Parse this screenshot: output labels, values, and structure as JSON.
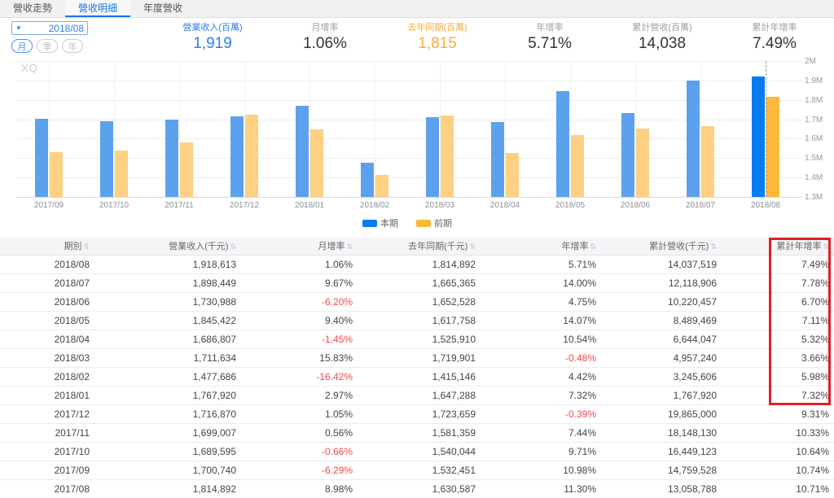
{
  "tabs": [
    {
      "label": "營收走勢",
      "active": false
    },
    {
      "label": "營收明細",
      "active": true
    },
    {
      "label": "年度營收",
      "active": false
    }
  ],
  "controls": {
    "period_dropdown": "2018/08",
    "granularity": [
      {
        "label": "月",
        "active": true
      },
      {
        "label": "季",
        "active": false
      },
      {
        "label": "年",
        "active": false
      }
    ]
  },
  "icons": {
    "dropdown_caret": "▼",
    "sort": "⇅"
  },
  "metrics": [
    {
      "label": "營業收入(百萬)",
      "value": "1,919",
      "color": "#2d7df5"
    },
    {
      "label": "月增率",
      "value": "1.06%",
      "color": "#333333"
    },
    {
      "label": "去年同期(百萬)",
      "value": "1,815",
      "color": "#fbad3c"
    },
    {
      "label": "年增率",
      "value": "5.71%",
      "color": "#333333"
    },
    {
      "label": "累計營收(百萬)",
      "value": "14,038",
      "color": "#333333"
    },
    {
      "label": "累計年增率",
      "value": "7.49%",
      "color": "#333333"
    }
  ],
  "chart_data": {
    "type": "bar",
    "watermark": "XQ",
    "categories": [
      "2017/09",
      "2017/10",
      "2017/11",
      "2017/12",
      "2018/01",
      "2018/02",
      "2018/03",
      "2018/04",
      "2018/05",
      "2018/06",
      "2018/07",
      "2018/08"
    ],
    "series": [
      {
        "name": "本期",
        "color": "#5ca1ee",
        "highlight_color": "#077cf2",
        "values": [
          1700740,
          1689595,
          1699007,
          1716870,
          1767920,
          1477686,
          1711634,
          1686807,
          1845422,
          1730988,
          1898449,
          1918613
        ]
      },
      {
        "name": "前期",
        "color": "#fdd084",
        "highlight_color": "#fcb838",
        "values": [
          1532451,
          1540044,
          1581359,
          1723659,
          1647288,
          1415146,
          1719901,
          1525910,
          1617758,
          1652528,
          1665365,
          1814892
        ]
      }
    ],
    "highlight_index": 11,
    "ylim": [
      1300000,
      2000000
    ],
    "y_ticks": [
      "2M",
      "1.9M",
      "1.8M",
      "1.7M",
      "1.6M",
      "1.5M",
      "1.4M",
      "1.3M"
    ],
    "legend_position": "bottom",
    "grid": true
  },
  "table": {
    "columns": [
      "期別",
      "營業收入(千元)",
      "月增率",
      "去年同期(千元)",
      "年增率",
      "累計營收(千元)",
      "累計年增率"
    ],
    "rows": [
      [
        "2018/08",
        "1,918,613",
        "1.06%",
        "1,814,892",
        "5.71%",
        "14,037,519",
        "7.49%"
      ],
      [
        "2018/07",
        "1,898,449",
        "9.67%",
        "1,665,365",
        "14.00%",
        "12,118,906",
        "7.78%"
      ],
      [
        "2018/06",
        "1,730,988",
        "-6.20%",
        "1,652,528",
        "4.75%",
        "10,220,457",
        "6.70%"
      ],
      [
        "2018/05",
        "1,845,422",
        "9.40%",
        "1,617,758",
        "14.07%",
        "8,489,469",
        "7.11%"
      ],
      [
        "2018/04",
        "1,686,807",
        "-1.45%",
        "1,525,910",
        "10.54%",
        "6,644,047",
        "5.32%"
      ],
      [
        "2018/03",
        "1,711,634",
        "15.83%",
        "1,719,901",
        "-0.48%",
        "4,957,240",
        "3.66%"
      ],
      [
        "2018/02",
        "1,477,686",
        "-16.42%",
        "1,415,146",
        "4.42%",
        "3,245,606",
        "5.98%"
      ],
      [
        "2018/01",
        "1,767,920",
        "2.97%",
        "1,647,288",
        "7.32%",
        "1,767,920",
        "7.32%"
      ],
      [
        "2017/12",
        "1,716,870",
        "1.05%",
        "1,723,659",
        "-0.39%",
        "19,865,000",
        "9.31%"
      ],
      [
        "2017/11",
        "1,699,007",
        "0.56%",
        "1,581,359",
        "7.44%",
        "18,148,130",
        "10.33%"
      ],
      [
        "2017/10",
        "1,689,595",
        "-0.66%",
        "1,540,044",
        "9.71%",
        "16,449,123",
        "10.64%"
      ],
      [
        "2017/09",
        "1,700,740",
        "-6.29%",
        "1,532,451",
        "10.98%",
        "14,759,528",
        "10.74%"
      ],
      [
        "2017/08",
        "1,814,892",
        "8.98%",
        "1,630,587",
        "11.30%",
        "13,058,788",
        "10.71%"
      ]
    ],
    "highlight_box_color": "#e31d25",
    "highlight_box_rows": 8
  }
}
